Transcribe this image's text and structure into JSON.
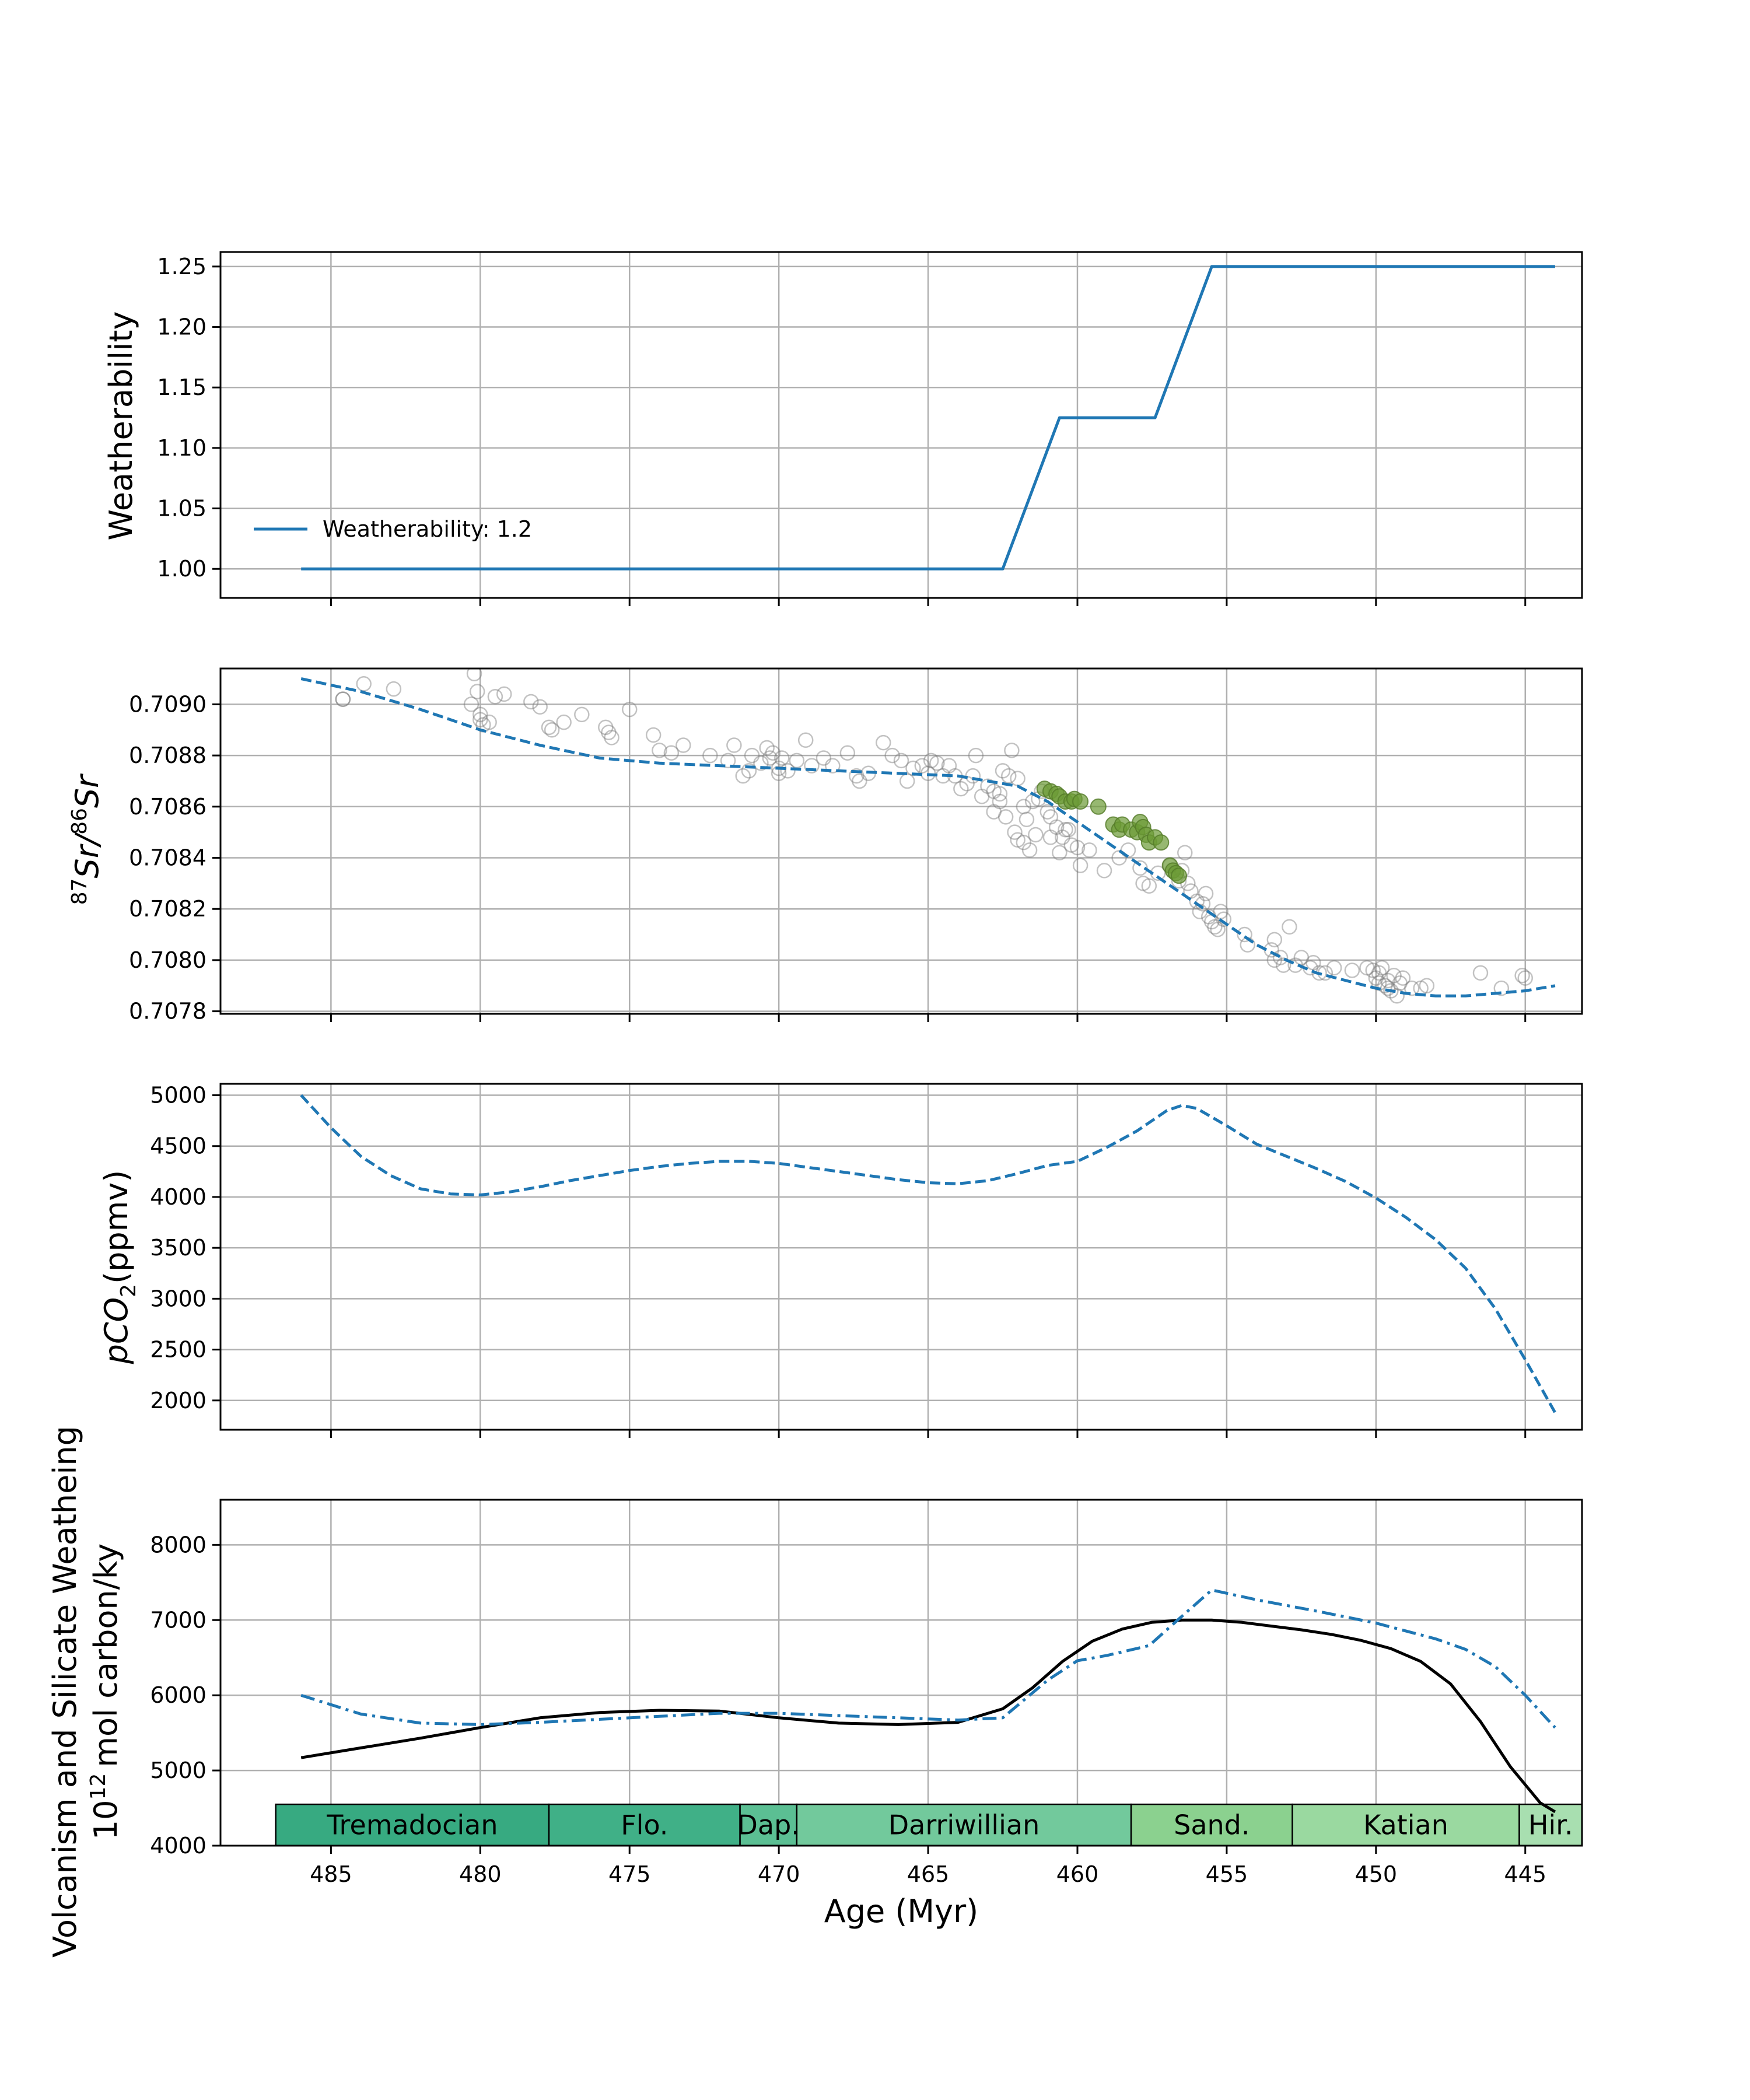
{
  "chart_data": [
    {
      "type": "line",
      "ylabel": "Weatherability",
      "ylim": [
        0.976,
        1.262
      ],
      "yticks": [
        "1.00",
        "1.05",
        "1.10",
        "1.15",
        "1.20",
        "1.25"
      ],
      "yticks_values": [
        1.0,
        1.05,
        1.1,
        1.15,
        1.2,
        1.25
      ],
      "grid": true,
      "legend": {
        "placement": "lower-left",
        "entries": [
          "Weatherability: 1.2"
        ]
      },
      "series": [
        {
          "name": "Weatherability: 1.2",
          "style": "solid",
          "color": "#1f77b4",
          "x": [
            486,
            462.5,
            460.6,
            457.4,
            455.5,
            444
          ],
          "y": [
            1.0,
            1.0,
            1.125,
            1.125,
            1.25,
            1.25
          ]
        }
      ]
    },
    {
      "type": "scatter",
      "ylabel_parts": {
        "sup1": "87",
        "base1": "Sr/",
        "sup2": "86",
        "base2": "Sr"
      },
      "ylim": [
        0.70779,
        0.70914
      ],
      "yticks": [
        "0.7078",
        "0.7080",
        "0.7082",
        "0.7084",
        "0.7086",
        "0.7088",
        "0.7090"
      ],
      "yticks_values": [
        0.7078,
        0.708,
        0.7082,
        0.7084,
        0.7086,
        0.7088,
        0.709
      ],
      "grid": true,
      "model_curve": {
        "style": "dashed",
        "color": "#1f77b4",
        "x": [
          486,
          484,
          482,
          480,
          478,
          476,
          474,
          472,
          470,
          468,
          466,
          464,
          462,
          461,
          460,
          459,
          458,
          457,
          456,
          455,
          454,
          453,
          452,
          451,
          450,
          449,
          448,
          447,
          446,
          445,
          444
        ],
        "y": [
          0.7091,
          0.70905,
          0.70898,
          0.7089,
          0.70884,
          0.70879,
          0.70877,
          0.70876,
          0.70875,
          0.70874,
          0.70873,
          0.70872,
          0.70868,
          0.70862,
          0.70854,
          0.70846,
          0.70838,
          0.7083,
          0.70822,
          0.70814,
          0.70806,
          0.708,
          0.70795,
          0.70792,
          0.70789,
          0.70787,
          0.70786,
          0.70786,
          0.70787,
          0.70788,
          0.7079
        ]
      },
      "points_gray": [
        [
          484.6,
          0.70902
        ],
        [
          484.6,
          0.70902
        ],
        [
          483.9,
          0.70908
        ],
        [
          482.9,
          0.70906
        ],
        [
          480.3,
          0.709
        ],
        [
          480.1,
          0.70905
        ],
        [
          480.0,
          0.70894
        ],
        [
          480.0,
          0.70896
        ],
        [
          479.9,
          0.70892
        ],
        [
          479.7,
          0.70893
        ],
        [
          479.5,
          0.70903
        ],
        [
          479.2,
          0.70904
        ],
        [
          480.2,
          0.70912
        ],
        [
          478.3,
          0.70901
        ],
        [
          478.0,
          0.70899
        ],
        [
          477.7,
          0.70891
        ],
        [
          477.6,
          0.7089
        ],
        [
          477.2,
          0.70893
        ],
        [
          476.6,
          0.70896
        ],
        [
          475.8,
          0.70891
        ],
        [
          475.7,
          0.70889
        ],
        [
          475.6,
          0.70887
        ],
        [
          475.0,
          0.70898
        ],
        [
          474.2,
          0.70888
        ],
        [
          474.0,
          0.70882
        ],
        [
          473.6,
          0.70881
        ],
        [
          473.2,
          0.70884
        ],
        [
          472.3,
          0.7088
        ],
        [
          471.7,
          0.70878
        ],
        [
          471.5,
          0.70884
        ],
        [
          471.2,
          0.70872
        ],
        [
          471.0,
          0.70874
        ],
        [
          470.9,
          0.7088
        ],
        [
          470.6,
          0.70877
        ],
        [
          470.4,
          0.70883
        ],
        [
          470.3,
          0.70879
        ],
        [
          470.2,
          0.70881
        ],
        [
          470.0,
          0.70875
        ],
        [
          470.0,
          0.70873
        ],
        [
          469.9,
          0.70879
        ],
        [
          469.7,
          0.70874
        ],
        [
          469.4,
          0.70878
        ],
        [
          469.1,
          0.70886
        ],
        [
          468.9,
          0.70876
        ],
        [
          468.5,
          0.70879
        ],
        [
          468.2,
          0.70876
        ],
        [
          467.7,
          0.70881
        ],
        [
          467.4,
          0.70872
        ],
        [
          467.3,
          0.7087
        ],
        [
          467.0,
          0.70873
        ],
        [
          466.5,
          0.70885
        ],
        [
          466.2,
          0.7088
        ],
        [
          465.9,
          0.70878
        ],
        [
          465.7,
          0.7087
        ],
        [
          465.5,
          0.70875
        ],
        [
          465.2,
          0.70876
        ],
        [
          465.0,
          0.70873
        ],
        [
          464.9,
          0.70878
        ],
        [
          464.7,
          0.70877
        ],
        [
          464.5,
          0.70872
        ],
        [
          464.3,
          0.70876
        ],
        [
          464.1,
          0.70872
        ],
        [
          463.9,
          0.70867
        ],
        [
          463.7,
          0.70869
        ],
        [
          463.5,
          0.70872
        ],
        [
          463.4,
          0.7088
        ],
        [
          463.2,
          0.70864
        ],
        [
          463.0,
          0.70868
        ],
        [
          462.8,
          0.70866
        ],
        [
          462.6,
          0.70865
        ],
        [
          462.5,
          0.70874
        ],
        [
          462.3,
          0.70872
        ],
        [
          462.2,
          0.70882
        ],
        [
          462.0,
          0.70871
        ],
        [
          461.8,
          0.7086
        ],
        [
          461.7,
          0.70855
        ],
        [
          461.5,
          0.70862
        ],
        [
          461.3,
          0.70863
        ],
        [
          461.2,
          0.70866
        ],
        [
          461.0,
          0.70858
        ],
        [
          460.9,
          0.70856
        ],
        [
          460.7,
          0.70852
        ],
        [
          460.5,
          0.70848
        ],
        [
          460.4,
          0.70851
        ],
        [
          460.2,
          0.70845
        ],
        [
          462.8,
          0.70858
        ],
        [
          462.6,
          0.70862
        ],
        [
          462.4,
          0.70856
        ],
        [
          462.1,
          0.7085
        ],
        [
          462.0,
          0.70847
        ],
        [
          461.8,
          0.70846
        ],
        [
          461.6,
          0.70843
        ],
        [
          461.4,
          0.70849
        ],
        [
          460.9,
          0.70848
        ],
        [
          460.6,
          0.70842
        ],
        [
          460.3,
          0.70851
        ],
        [
          460.0,
          0.70844
        ],
        [
          459.9,
          0.70837
        ],
        [
          459.6,
          0.70843
        ],
        [
          459.1,
          0.70835
        ],
        [
          458.6,
          0.7084
        ],
        [
          458.3,
          0.70843
        ],
        [
          457.9,
          0.70836
        ],
        [
          457.8,
          0.7083
        ],
        [
          457.6,
          0.70829
        ],
        [
          457.3,
          0.70834
        ],
        [
          456.9,
          0.70837
        ],
        [
          456.6,
          0.70831
        ],
        [
          456.4,
          0.70842
        ],
        [
          456.5,
          0.70835
        ],
        [
          456.3,
          0.7083
        ],
        [
          456.2,
          0.70827
        ],
        [
          456.0,
          0.70823
        ],
        [
          455.9,
          0.70819
        ],
        [
          455.8,
          0.70822
        ],
        [
          455.7,
          0.70826
        ],
        [
          455.6,
          0.70817
        ],
        [
          455.5,
          0.70815
        ],
        [
          455.4,
          0.70813
        ],
        [
          455.3,
          0.70812
        ],
        [
          455.2,
          0.70819
        ],
        [
          455.1,
          0.70816
        ],
        [
          454.4,
          0.7081
        ],
        [
          454.3,
          0.70806
        ],
        [
          453.5,
          0.70804
        ],
        [
          453.4,
          0.70808
        ],
        [
          453.4,
          0.708
        ],
        [
          453.2,
          0.70801
        ],
        [
          453.1,
          0.70798
        ],
        [
          452.9,
          0.70813
        ],
        [
          452.7,
          0.70798
        ],
        [
          452.5,
          0.70801
        ],
        [
          452.2,
          0.70797
        ],
        [
          452.1,
          0.70799
        ],
        [
          451.9,
          0.70795
        ],
        [
          451.7,
          0.70795
        ],
        [
          451.4,
          0.70797
        ],
        [
          450.8,
          0.70796
        ],
        [
          450.3,
          0.70797
        ],
        [
          450.1,
          0.70796
        ],
        [
          450.0,
          0.70793
        ],
        [
          449.9,
          0.70791
        ],
        [
          449.9,
          0.70795
        ],
        [
          449.8,
          0.70797
        ],
        [
          449.7,
          0.7079
        ],
        [
          449.6,
          0.70789
        ],
        [
          449.6,
          0.70792
        ],
        [
          449.5,
          0.70788
        ],
        [
          449.4,
          0.70794
        ],
        [
          449.3,
          0.70786
        ],
        [
          449.2,
          0.70791
        ],
        [
          449.1,
          0.70793
        ],
        [
          448.8,
          0.70789
        ],
        [
          448.5,
          0.70789
        ],
        [
          448.3,
          0.7079
        ],
        [
          446.5,
          0.70795
        ],
        [
          445.8,
          0.70789
        ],
        [
          445.1,
          0.70794
        ],
        [
          445.0,
          0.70793
        ]
      ],
      "points_green": [
        [
          461.1,
          0.70867
        ],
        [
          460.9,
          0.70866
        ],
        [
          460.7,
          0.70865
        ],
        [
          460.6,
          0.70864
        ],
        [
          460.4,
          0.70862
        ],
        [
          460.2,
          0.70862
        ],
        [
          460.1,
          0.70863
        ],
        [
          459.9,
          0.70862
        ],
        [
          459.3,
          0.7086
        ],
        [
          458.8,
          0.70853
        ],
        [
          458.6,
          0.70851
        ],
        [
          458.5,
          0.70853
        ],
        [
          458.2,
          0.70851
        ],
        [
          458.0,
          0.7085
        ],
        [
          457.9,
          0.70854
        ],
        [
          457.8,
          0.70852
        ],
        [
          457.7,
          0.70849
        ],
        [
          457.6,
          0.70846
        ],
        [
          457.4,
          0.70848
        ],
        [
          457.2,
          0.70846
        ],
        [
          456.9,
          0.70837
        ],
        [
          456.8,
          0.70835
        ],
        [
          456.7,
          0.70834
        ],
        [
          456.6,
          0.70833
        ]
      ]
    },
    {
      "type": "line",
      "ylabel_parts": {
        "italic": "pCO",
        "sub": "2",
        "rest": "(ppmv)"
      },
      "ylim": [
        1712,
        5112
      ],
      "yticks": [
        "2000",
        "2500",
        "3000",
        "3500",
        "4000",
        "4500",
        "5000"
      ],
      "yticks_values": [
        2000,
        2500,
        3000,
        3500,
        4000,
        4500,
        5000
      ],
      "grid": true,
      "series": [
        {
          "style": "dashed",
          "color": "#1f77b4",
          "x": [
            486,
            485,
            484,
            483,
            482,
            481,
            480,
            479,
            478,
            477,
            476,
            475,
            474,
            473,
            472,
            471,
            470,
            469,
            468,
            467,
            466,
            465,
            464,
            463,
            462,
            461,
            460,
            459,
            458,
            457,
            456.5,
            456,
            455,
            454,
            453,
            452,
            451,
            450,
            449,
            448,
            447,
            446,
            445,
            444
          ],
          "y": [
            5000,
            4680,
            4400,
            4210,
            4080,
            4030,
            4020,
            4050,
            4100,
            4160,
            4210,
            4260,
            4300,
            4330,
            4350,
            4350,
            4330,
            4290,
            4250,
            4210,
            4170,
            4140,
            4130,
            4160,
            4230,
            4310,
            4350,
            4490,
            4650,
            4850,
            4900,
            4870,
            4700,
            4520,
            4400,
            4280,
            4150,
            3990,
            3800,
            3580,
            3300,
            2900,
            2400,
            1880
          ]
        }
      ]
    },
    {
      "type": "line",
      "ylabel_lines": [
        "Volcanism and Silicate Weatheing",
        "mol carbon/ky"
      ],
      "ylabel_prefix": {
        "base": "10",
        "sup": "12"
      },
      "ylim": [
        4000,
        8600
      ],
      "yticks": [
        "4000",
        "5000",
        "6000",
        "7000",
        "8000"
      ],
      "yticks_values": [
        4000,
        5000,
        6000,
        7000,
        8000
      ],
      "grid": true,
      "series": [
        {
          "style": "solid",
          "color": "#000000",
          "x": [
            486,
            484,
            482,
            480,
            478,
            476,
            474,
            472,
            470,
            468,
            466,
            464,
            462.5,
            461.5,
            460.5,
            459.5,
            458.5,
            457.5,
            456.5,
            455.5,
            454.5,
            453.5,
            452.5,
            451.5,
            450.5,
            449.5,
            448.5,
            447.5,
            446.5,
            445.5,
            444.5,
            444
          ],
          "y": [
            5170,
            5300,
            5430,
            5570,
            5700,
            5770,
            5800,
            5790,
            5700,
            5630,
            5610,
            5640,
            5820,
            6100,
            6450,
            6720,
            6880,
            6970,
            7000,
            7000,
            6970,
            6920,
            6870,
            6810,
            6730,
            6620,
            6450,
            6150,
            5650,
            5050,
            4570,
            4450
          ]
        },
        {
          "style": "dash-dot",
          "color": "#1f77b4",
          "x": [
            486,
            484,
            482,
            480,
            478,
            476,
            474,
            472,
            470,
            468,
            466,
            464,
            462.5,
            461,
            460,
            459,
            457.6,
            456.5,
            455.5,
            454,
            452,
            450,
            448,
            447,
            446,
            445,
            444
          ],
          "y": [
            6000,
            5750,
            5630,
            5610,
            5640,
            5680,
            5720,
            5760,
            5760,
            5730,
            5700,
            5670,
            5700,
            6200,
            6460,
            6530,
            6660,
            7050,
            7400,
            7270,
            7120,
            6960,
            6750,
            6610,
            6380,
            6000,
            5570
          ]
        }
      ],
      "stages": [
        {
          "label": "Tremadocian",
          "start": 486.85,
          "end": 477.7,
          "color": "#37aa81"
        },
        {
          "label": "Flo.",
          "start": 477.7,
          "end": 471.3,
          "color": "#40b087"
        },
        {
          "label": "Dap.",
          "start": 471.3,
          "end": 469.4,
          "color": "#5bbf93"
        },
        {
          "label": "Darriwillian",
          "start": 469.4,
          "end": 458.2,
          "color": "#72c99c"
        },
        {
          "label": "Sand.",
          "start": 458.2,
          "end": 452.8,
          "color": "#8bd18f"
        },
        {
          "label": "Katian",
          "start": 452.8,
          "end": 445.2,
          "color": "#9ad9a0"
        },
        {
          "label": "Hir.",
          "start": 445.2,
          "end": 443.1,
          "color": "#a8dfb0"
        }
      ]
    }
  ],
  "x_axis": {
    "label": "Age (Myr)",
    "xlim": [
      488.7,
      443.1
    ],
    "ticks": [
      "485",
      "480",
      "475",
      "470",
      "465",
      "460",
      "455",
      "450",
      "445"
    ],
    "ticks_values": [
      485,
      480,
      475,
      470,
      465,
      460,
      455,
      450,
      445
    ]
  },
  "colors": {
    "model": "#1f77b4",
    "volcanism": "#000000",
    "grid": "#b0b0b0",
    "data_gray": "#bdbdbd",
    "data_green": "#6b9a35"
  }
}
